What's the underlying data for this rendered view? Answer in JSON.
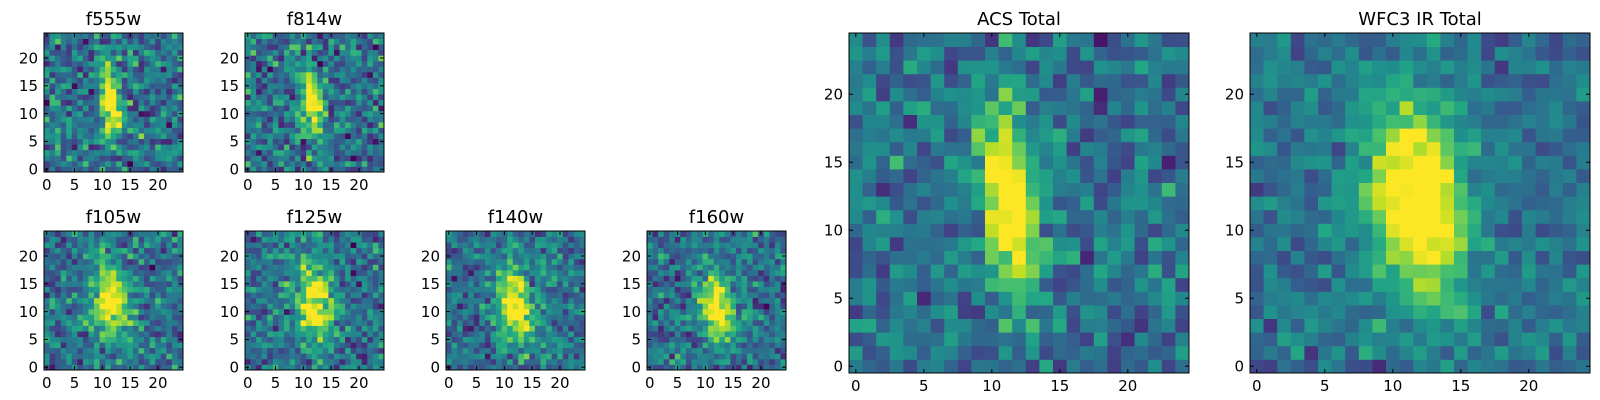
{
  "figure": {
    "colormap": "viridis",
    "grid_size": 25
  },
  "chart_data": [
    {
      "type": "heatmap",
      "title": "f555w",
      "xticks": [
        0,
        5,
        10,
        15,
        20
      ],
      "yticks": [
        0,
        5,
        10,
        15,
        20
      ],
      "xlim": [
        0,
        25
      ],
      "ylim": [
        0,
        25
      ],
      "source": {
        "x_center": 11.5,
        "y_center": 12.5,
        "sigma_x": 1.1,
        "sigma_y": 4.5,
        "tilt": 0.12,
        "peak": 0.8
      },
      "noise": 0.32,
      "seed": 11
    },
    {
      "type": "heatmap",
      "title": "f814w",
      "xticks": [
        0,
        5,
        10,
        15,
        20
      ],
      "yticks": [
        0,
        5,
        10,
        15,
        20
      ],
      "xlim": [
        0,
        25
      ],
      "ylim": [
        0,
        25
      ],
      "source": {
        "x_center": 11.5,
        "y_center": 12,
        "sigma_x": 1.1,
        "sigma_y": 4.5,
        "tilt": 0.12,
        "peak": 0.8
      },
      "noise": 0.32,
      "seed": 23
    },
    {
      "type": "heatmap",
      "title": "f105w",
      "xticks": [
        0,
        5,
        10,
        15,
        20
      ],
      "yticks": [
        0,
        5,
        10,
        15,
        20
      ],
      "xlim": [
        0,
        25
      ],
      "ylim": [
        0,
        25
      ],
      "source": {
        "x_center": 11.5,
        "y_center": 12,
        "sigma_x": 2.3,
        "sigma_y": 4.6,
        "tilt": 0.1,
        "peak": 0.7
      },
      "noise": 0.28,
      "seed": 37
    },
    {
      "type": "heatmap",
      "title": "f125w",
      "xticks": [
        0,
        5,
        10,
        15,
        20
      ],
      "yticks": [
        0,
        5,
        10,
        15,
        20
      ],
      "xlim": [
        0,
        25
      ],
      "ylim": [
        0,
        25
      ],
      "source": {
        "x_center": 12,
        "y_center": 11.5,
        "sigma_x": 2.2,
        "sigma_y": 4.6,
        "tilt": 0.1,
        "peak": 0.7
      },
      "noise": 0.28,
      "seed": 41
    },
    {
      "type": "heatmap",
      "title": "f140w",
      "xticks": [
        0,
        5,
        10,
        15,
        20
      ],
      "yticks": [
        0,
        5,
        10,
        15,
        20
      ],
      "xlim": [
        0,
        25
      ],
      "ylim": [
        0,
        25
      ],
      "source": {
        "x_center": 12,
        "y_center": 11,
        "sigma_x": 2.1,
        "sigma_y": 4.6,
        "tilt": 0.12,
        "peak": 0.75
      },
      "noise": 0.26,
      "seed": 53
    },
    {
      "type": "heatmap",
      "title": "f160w",
      "xticks": [
        0,
        5,
        10,
        15,
        20
      ],
      "yticks": [
        0,
        5,
        10,
        15,
        20
      ],
      "xlim": [
        0,
        25
      ],
      "ylim": [
        0,
        25
      ],
      "source": {
        "x_center": 12,
        "y_center": 11,
        "sigma_x": 2.0,
        "sigma_y": 4.4,
        "tilt": 0.12,
        "peak": 0.75
      },
      "noise": 0.26,
      "seed": 67
    },
    {
      "type": "heatmap",
      "title": "ACS Total",
      "xticks": [
        0,
        5,
        10,
        15,
        20
      ],
      "yticks": [
        0,
        5,
        10,
        15,
        20
      ],
      "xlim": [
        0,
        25
      ],
      "ylim": [
        0,
        25
      ],
      "source": {
        "x_center": 11.3,
        "y_center": 12,
        "sigma_x": 1.3,
        "sigma_y": 4.6,
        "tilt": 0.1,
        "peak": 0.85
      },
      "noise": 0.24,
      "seed": 79
    },
    {
      "type": "heatmap",
      "title": "WFC3 IR Total",
      "xticks": [
        0,
        5,
        10,
        15,
        20
      ],
      "yticks": [
        0,
        5,
        10,
        15,
        20
      ],
      "xlim": [
        0,
        25
      ],
      "ylim": [
        0,
        25
      ],
      "source": {
        "x_center": 11.8,
        "y_center": 12,
        "sigma_x": 2.4,
        "sigma_y": 4.8,
        "tilt": 0.1,
        "peak": 0.85
      },
      "noise": 0.18,
      "seed": 97
    }
  ]
}
